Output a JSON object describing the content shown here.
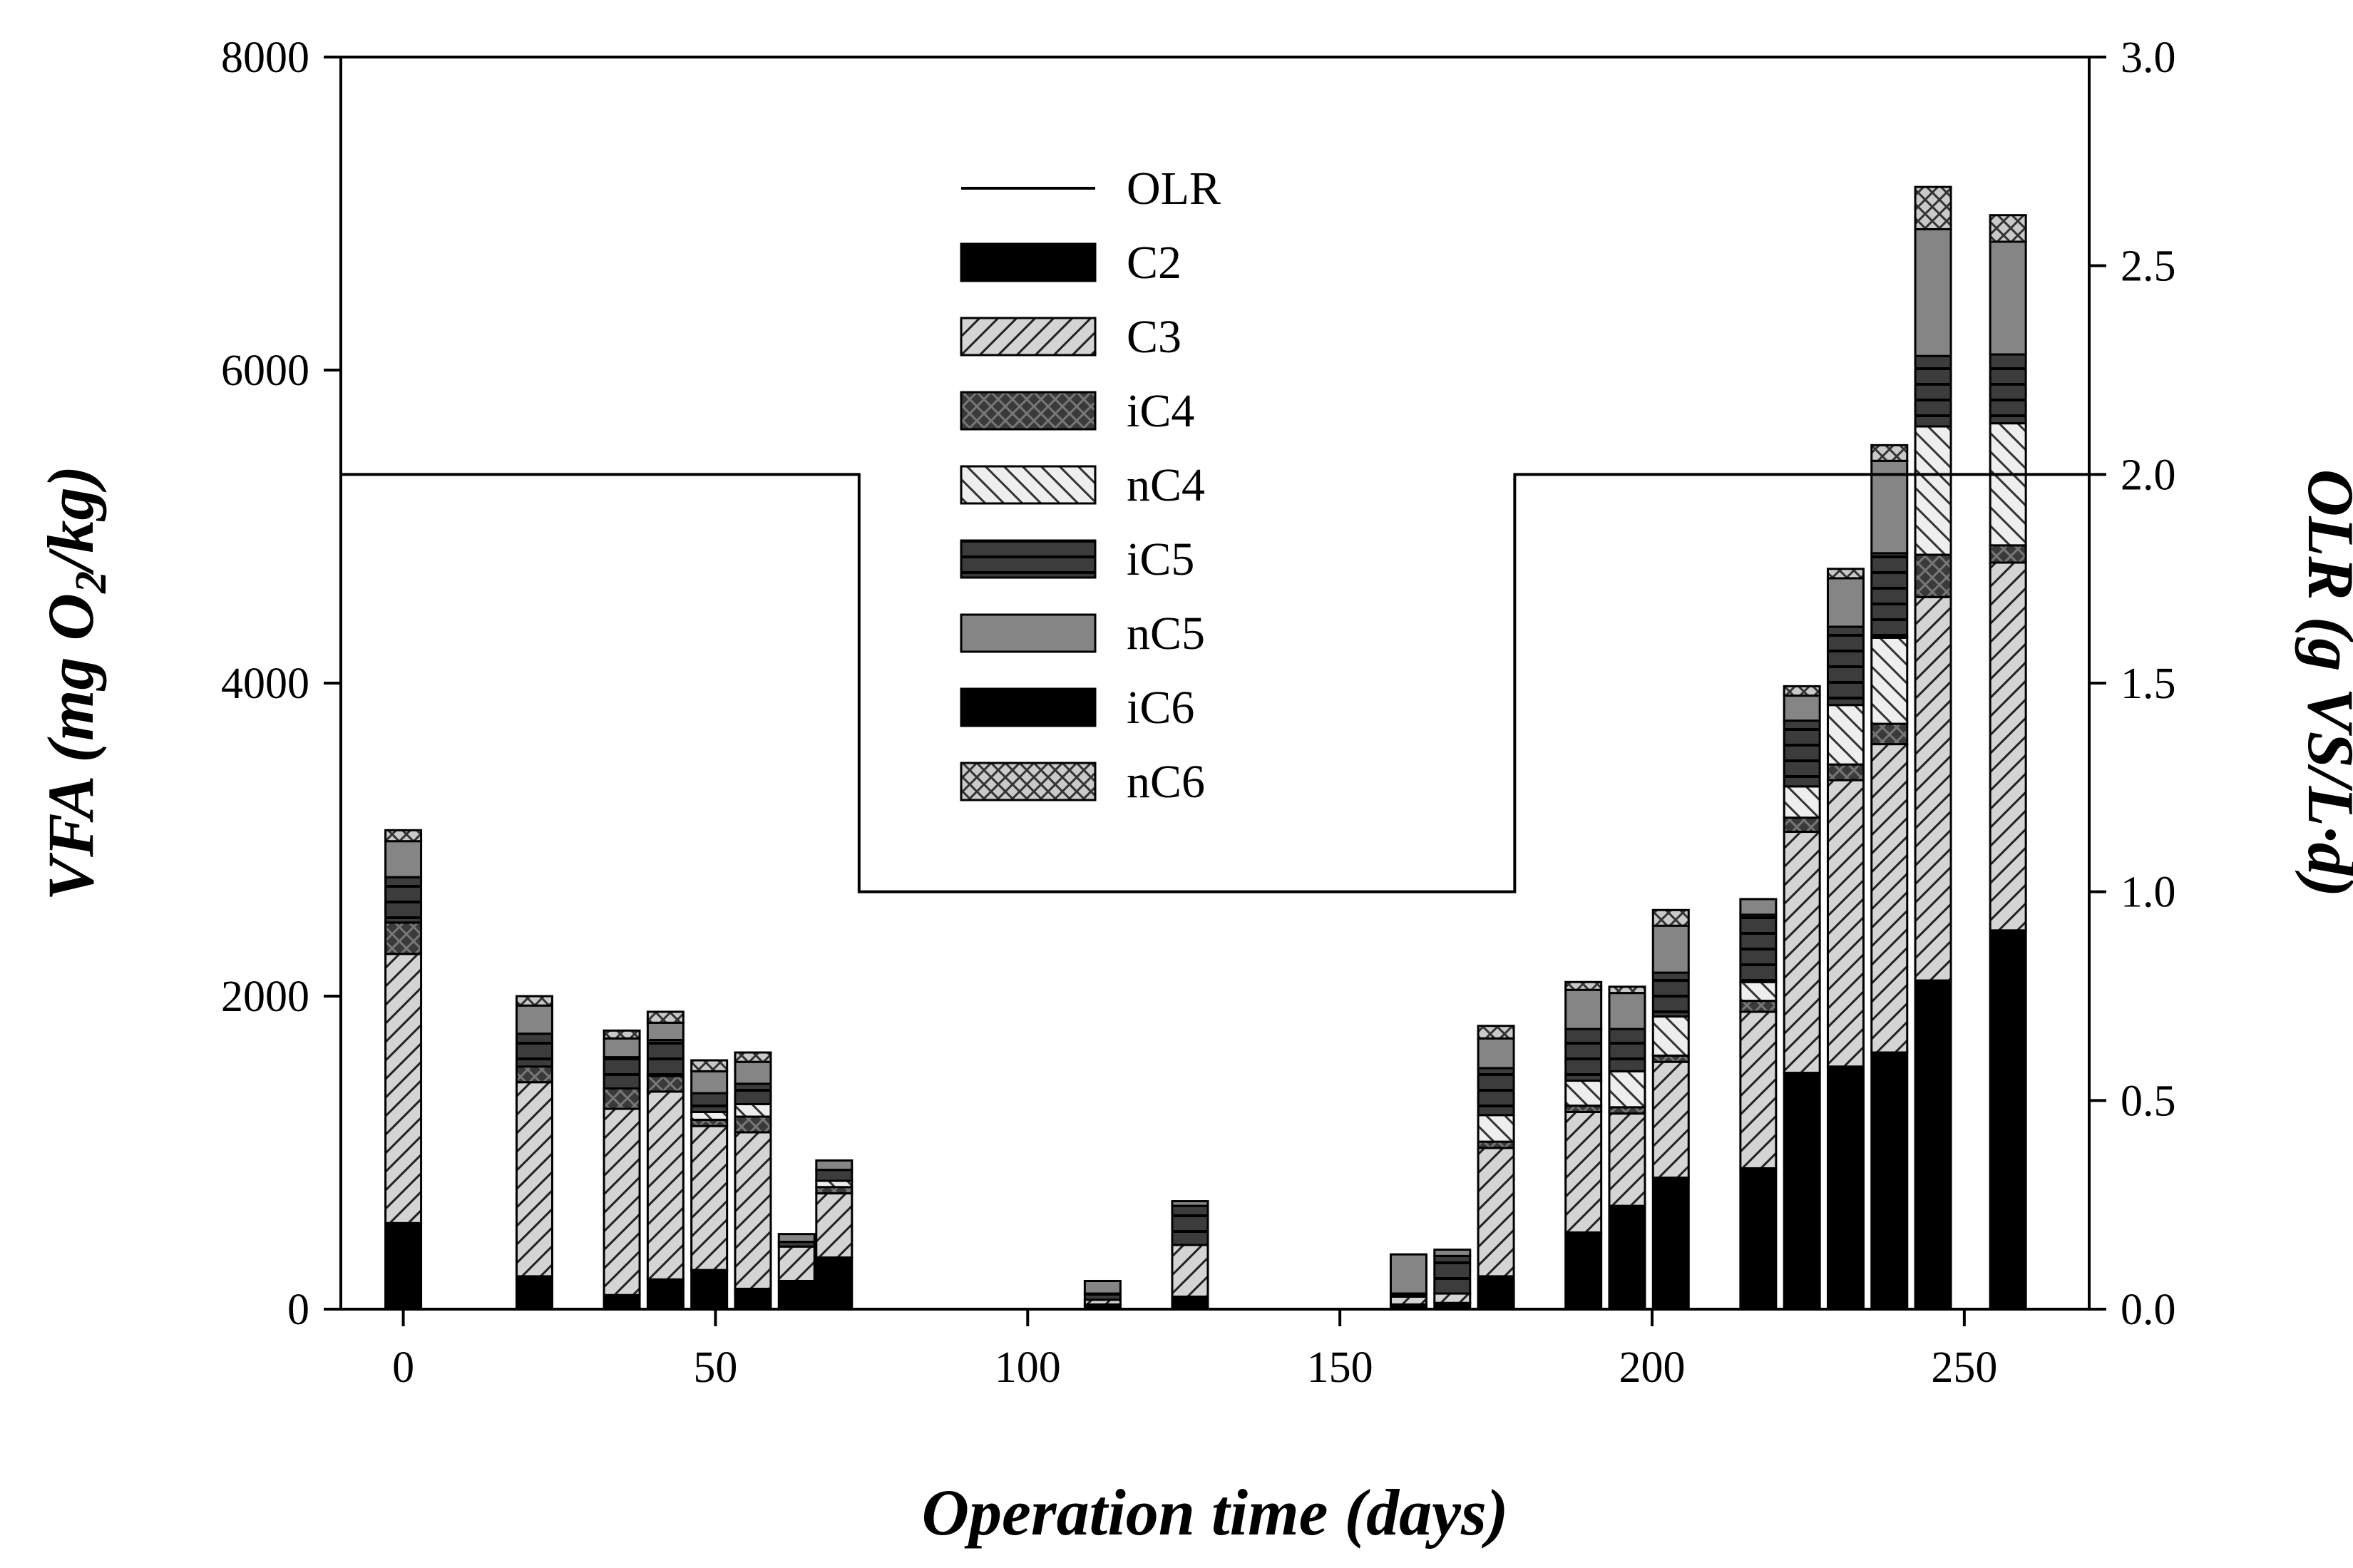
{
  "chart_data": {
    "type": "bar",
    "stacked": true,
    "xlabel": "Operation time (days)",
    "ylabel_left": "VFA (mg O2/kg)",
    "ylabel_left_parts": {
      "pre": "VFA (mg O",
      "sub": "2",
      "post": "/kg)"
    },
    "ylabel_right": "OLR (g VS/L·d)",
    "xlim": [
      -10,
      270
    ],
    "xticks": [
      0,
      50,
      100,
      150,
      200,
      250
    ],
    "ylim_left": [
      0,
      8000
    ],
    "yticks_left": [
      0,
      2000,
      4000,
      6000,
      8000
    ],
    "ylim_right": [
      0,
      3
    ],
    "yticks_right": [
      "0.0",
      "0.5",
      "1.0",
      "1.5",
      "2.0",
      "2.5",
      "3.0"
    ],
    "legend_position": "top-center",
    "components": [
      "C2",
      "C3",
      "iC4",
      "nC4",
      "iC5",
      "nC5",
      "iC6",
      "nC6"
    ],
    "legend": [
      {
        "name": "OLR",
        "kind": "line"
      },
      {
        "name": "C2",
        "kind": "solid-black"
      },
      {
        "name": "C3",
        "kind": "diagonal-hatch"
      },
      {
        "name": "iC4",
        "kind": "crosshatch-dark"
      },
      {
        "name": "nC4",
        "kind": "back-diagonal-hatch"
      },
      {
        "name": "iC5",
        "kind": "horizontal-lines-dark"
      },
      {
        "name": "nC5",
        "kind": "solid-gray"
      },
      {
        "name": "iC6",
        "kind": "solid-black"
      },
      {
        "name": "nC6",
        "kind": "crosshatch-light"
      }
    ],
    "bars": [
      {
        "day": 0,
        "values": [
          550,
          1720,
          200,
          0,
          290,
          230,
          0,
          70
        ]
      },
      {
        "day": 21,
        "values": [
          210,
          1240,
          100,
          0,
          210,
          180,
          0,
          60
        ]
      },
      {
        "day": 35,
        "values": [
          90,
          1190,
          130,
          0,
          200,
          120,
          0,
          50
        ]
      },
      {
        "day": 42,
        "values": [
          190,
          1200,
          100,
          0,
          230,
          110,
          0,
          70
        ]
      },
      {
        "day": 49,
        "values": [
          250,
          920,
          40,
          50,
          120,
          140,
          0,
          70
        ]
      },
      {
        "day": 56,
        "values": [
          130,
          1000,
          100,
          80,
          130,
          140,
          0,
          60
        ]
      },
      {
        "day": 63,
        "values": [
          180,
          220,
          0,
          0,
          30,
          50,
          0,
          0
        ]
      },
      {
        "day": 69,
        "values": [
          330,
          410,
          40,
          40,
          70,
          60,
          0,
          0
        ]
      },
      {
        "day": 112,
        "values": [
          30,
          30,
          0,
          0,
          40,
          80,
          0,
          0
        ]
      },
      {
        "day": 126,
        "values": [
          80,
          330,
          0,
          0,
          250,
          30,
          0,
          0
        ]
      },
      {
        "day": 161,
        "values": [
          30,
          50,
          0,
          0,
          20,
          250,
          0,
          0
        ]
      },
      {
        "day": 168,
        "values": [
          40,
          60,
          0,
          0,
          240,
          40,
          0,
          0
        ]
      },
      {
        "day": 175,
        "values": [
          210,
          820,
          40,
          170,
          300,
          190,
          0,
          80
        ]
      },
      {
        "day": 189,
        "values": [
          490,
          770,
          40,
          160,
          330,
          250,
          0,
          50
        ]
      },
      {
        "day": 196,
        "values": [
          660,
          590,
          40,
          230,
          270,
          230,
          0,
          40
        ]
      },
      {
        "day": 203,
        "values": [
          840,
          740,
          40,
          250,
          280,
          300,
          0,
          100
        ]
      },
      {
        "day": 217,
        "values": [
          900,
          1000,
          70,
          120,
          430,
          100,
          0,
          0
        ]
      },
      {
        "day": 224,
        "values": [
          1510,
          1540,
          90,
          200,
          420,
          160,
          0,
          60
        ]
      },
      {
        "day": 231,
        "values": [
          1550,
          1830,
          100,
          380,
          500,
          310,
          0,
          60
        ]
      },
      {
        "day": 238,
        "values": [
          1640,
          1970,
          130,
          550,
          540,
          590,
          0,
          100
        ]
      },
      {
        "day": 245,
        "values": [
          2100,
          2450,
          270,
          820,
          450,
          810,
          0,
          270
        ]
      },
      {
        "day": 257,
        "values": [
          2420,
          2350,
          110,
          780,
          440,
          720,
          0,
          170
        ]
      }
    ],
    "olr_series": {
      "name": "OLR",
      "x": [
        -10,
        73,
        73,
        178,
        178,
        270
      ],
      "y": [
        2.0,
        2.0,
        1.0,
        1.0,
        2.0,
        2.0
      ]
    }
  }
}
